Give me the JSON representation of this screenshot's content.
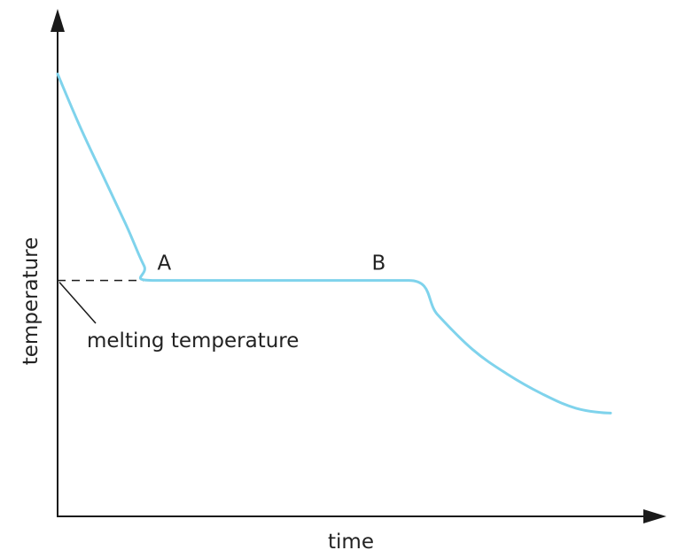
{
  "chart_data": {
    "type": "line",
    "xlabel": "time",
    "ylabel": "temperature",
    "xlim": [
      0,
      10
    ],
    "ylim": [
      0,
      10
    ],
    "grid": false,
    "legend": "none",
    "series": [
      {
        "color": "#7fd3ec",
        "points": [
          [
            0,
            9.0
          ],
          [
            0.4,
            7.9
          ],
          [
            0.8,
            6.9
          ],
          [
            1.2,
            5.9
          ],
          [
            1.5,
            5.1
          ],
          [
            1.7,
            4.8
          ],
          [
            4.3,
            4.8
          ],
          [
            6.1,
            4.8
          ],
          [
            6.6,
            4.1
          ],
          [
            7.2,
            3.4
          ],
          [
            7.8,
            2.9
          ],
          [
            8.4,
            2.5
          ],
          [
            9.0,
            2.2
          ],
          [
            9.6,
            2.1
          ]
        ]
      }
    ],
    "reference_line": {
      "y": 4.8,
      "x_end": 1.7,
      "style": "dashed"
    },
    "annotations": [
      {
        "id": "A",
        "text": "A",
        "x": 1.7,
        "y": 4.8
      },
      {
        "id": "B",
        "text": "B",
        "x": 6.1,
        "y": 4.8
      }
    ],
    "reference_label": "melting temperature",
    "axis_color": "#1a1a1a"
  }
}
